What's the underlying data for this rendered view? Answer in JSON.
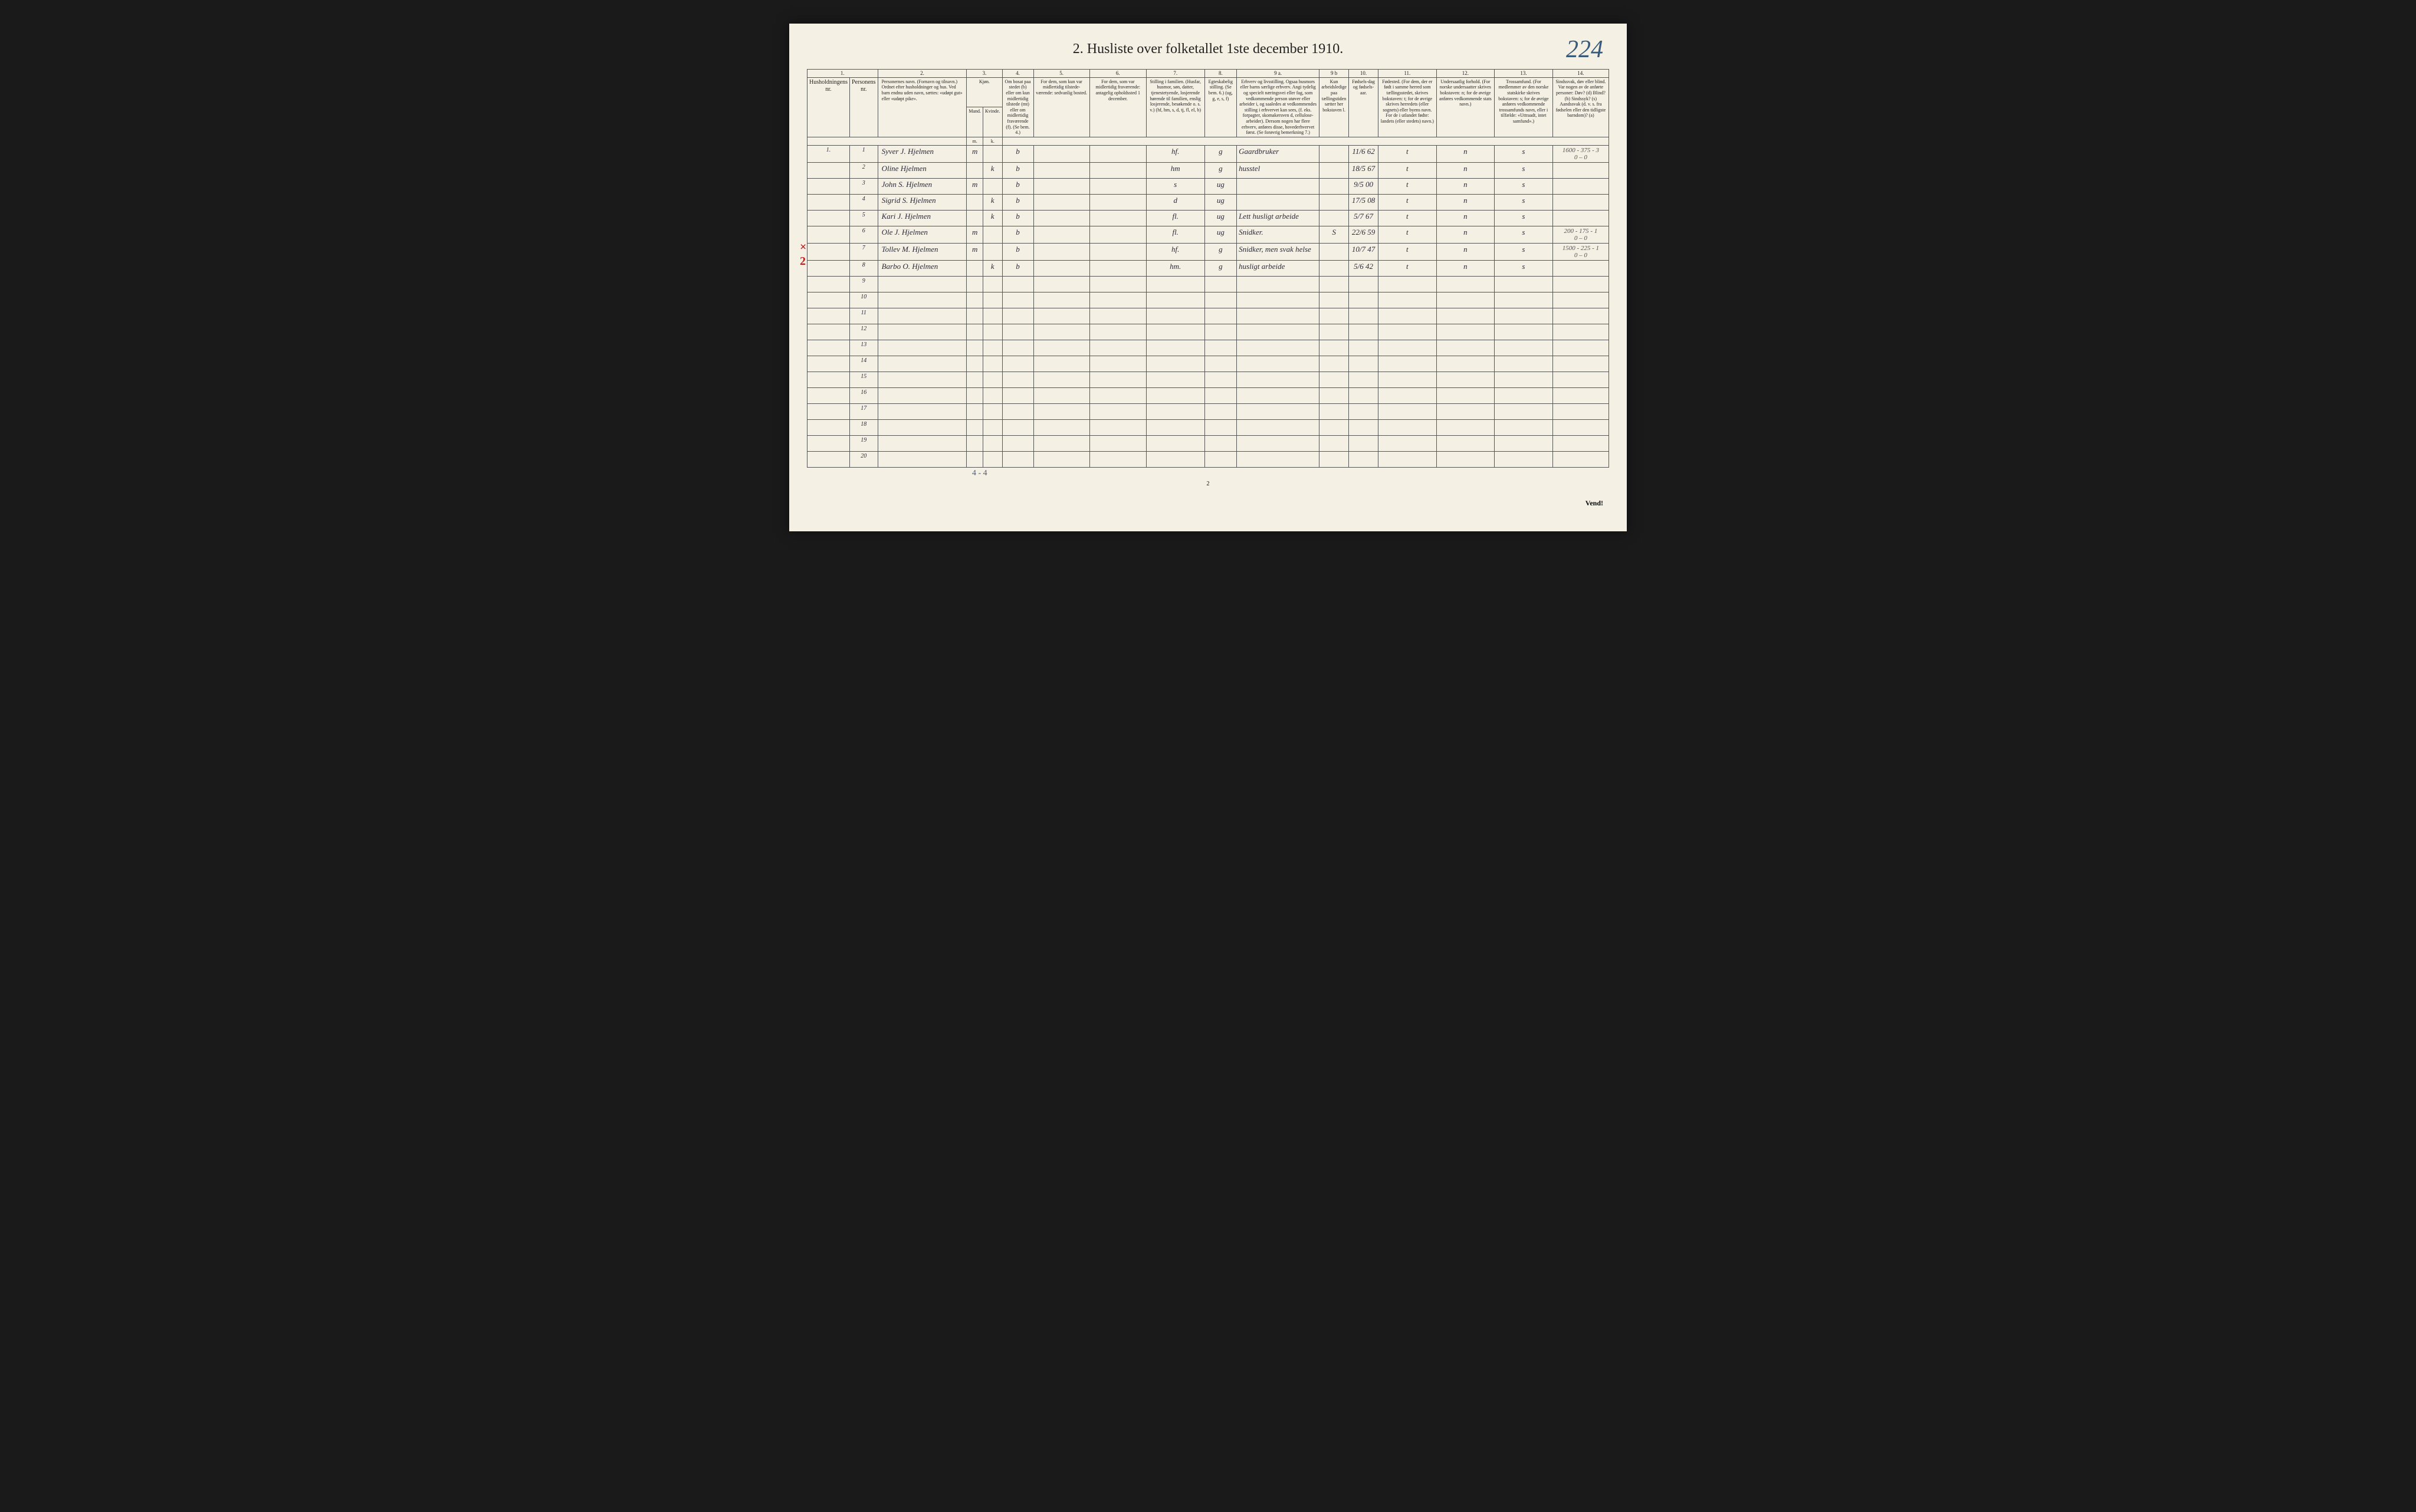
{
  "pageNumber": "224",
  "title": "2. Husliste over folketallet 1ste december 1910.",
  "colNumbers": [
    "1.",
    "",
    "2.",
    "3.",
    "4.",
    "5.",
    "6.",
    "7.",
    "8.",
    "9 a.",
    "9 b",
    "10.",
    "11.",
    "12.",
    "13.",
    "14."
  ],
  "headers": {
    "h1": "Husholdningens nr.",
    "h2": "Personens nr.",
    "h3": "Personernes navn.\n(Fornavn og tilnavn.)\nOrdnet efter husholdninger og hus.\nVed barn endnu uden navn, sættes: «udøpt gut» eller «udøpt pike».",
    "h4": "Kjøn.",
    "h4a": "Mand.",
    "h4b": "Kvinde.",
    "h5": "Om bosat paa stedet (b) eller om kun midlertidig tilstede (mt) eller om midlertidig fraværende (f).\n(Se bem. 4.)",
    "h6": "For dem, som kun var midlertidig tilstede-værende:\nsedvanlig bosted.",
    "h7": "For dem, som var midlertidig fraværende:\nantagelig opholdssted 1 december.",
    "h8": "Stilling i familien.\n(Husfar, husmor, søn, datter, tjenestetyende, losjerende hørende til familien, enslig losjerende, besøkende o. s. v.)\n(hf, hm, s, d, tj, fl, el, b)",
    "h9": "Egteskabelig stilling.\n(Se bem. 6.)\n(ug, g, e, s, f)",
    "h10": "Erhverv og livsstilling.\nOgsaa husmors eller barns særlige erhverv. Angi tydelig og specielt næringsvei eller fag, som vedkommende person utøver eller arbeider i, og saaledes at vedkommendes stilling i erhvervet kan sees, (f. eks. forpagter, skomakersven d, cellulose-arbeider). Dersom nogen har flere erhverv, anføres disse, hovederhvervet først.\n(Se forøvrig bemerkning 7.)",
    "h11": "Kun arbeidsledige paa tællingstiden sætter her bokstaven l.",
    "h12": "Fødsels-dag og fødsels-aar.",
    "h13": "Fødested.\n(For dem, der er født i samme herred som tællingsstedet, skrives bokstaven: t; for de øvrige skrives herredets (eller sognets) eller byens navn. For de i utlandet fødte: landets (eller stedets) navn.)",
    "h14": "Undersaatlig forhold.\n(For norske undersaatter skrives bokstaven: n; for de øvrige anføres vedkommende stats navn.)",
    "h15": "Trossamfund.\n(For medlemmer av den norske statskirke skrives bokstaven: s; for de øvrige anføres vedkommende trossamfunds navn, eller i tilfælde: «Uttraadt, intet samfund».)",
    "h16": "Sindssvak, døv eller blind.\nVar nogen av de anførte personer:\nDøv? (d)\nBlind? (b)\nSindssyk? (s)\nAandssvak (d. v. s. fra fødselen eller den tidligste barndom)? (a)"
  },
  "mk": {
    "m": "m.",
    "k": "k."
  },
  "rows": [
    {
      "hnr": "1.",
      "pnr": "1",
      "name": "Syver J. Hjelmen",
      "sex_m": "m",
      "sex_k": "",
      "bosat": "b",
      "c6": "",
      "c7": "",
      "fam": "hf.",
      "egt": "g",
      "erhverv": "Gaardbruker",
      "c9b": "",
      "fdate": "11/6 62",
      "fsted": "t",
      "und": "n",
      "tro": "s",
      "c14": "1600 - 375 - 3\n0 – 0"
    },
    {
      "hnr": "",
      "pnr": "2",
      "name": "Oline Hjelmen",
      "sex_m": "",
      "sex_k": "k",
      "bosat": "b",
      "c6": "",
      "c7": "",
      "fam": "hm",
      "egt": "g",
      "erhverv": "husstel",
      "c9b": "",
      "fdate": "18/5 67",
      "fsted": "t",
      "und": "n",
      "tro": "s",
      "c14": ""
    },
    {
      "hnr": "",
      "pnr": "3",
      "name": "John S. Hjelmen",
      "sex_m": "m",
      "sex_k": "",
      "bosat": "b",
      "c6": "",
      "c7": "",
      "fam": "s",
      "egt": "ug",
      "erhverv": "",
      "c9b": "",
      "fdate": "9/5 00",
      "fsted": "t",
      "und": "n",
      "tro": "s",
      "c14": ""
    },
    {
      "hnr": "",
      "pnr": "4",
      "name": "Sigrid S. Hjelmen",
      "sex_m": "",
      "sex_k": "k",
      "bosat": "b",
      "c6": "",
      "c7": "",
      "fam": "d",
      "egt": "ug",
      "erhverv": "",
      "c9b": "",
      "fdate": "17/5 08",
      "fsted": "t",
      "und": "n",
      "tro": "s",
      "c14": ""
    },
    {
      "hnr": "",
      "pnr": "5",
      "name": "Kari J. Hjelmen",
      "sex_m": "",
      "sex_k": "k",
      "bosat": "b",
      "c6": "",
      "c7": "",
      "fam": "fl.",
      "egt": "ug",
      "erhverv": "Lett husligt arbeide",
      "c9b": "",
      "fdate": "5/7 67",
      "fsted": "t",
      "und": "n",
      "tro": "s",
      "c14": ""
    },
    {
      "hnr": "",
      "pnr": "6",
      "name": "Ole J. Hjelmen",
      "sex_m": "m",
      "sex_k": "",
      "bosat": "b",
      "c6": "",
      "c7": "",
      "fam": "fl.",
      "egt": "ug",
      "erhverv": "Snidker.",
      "c9b": "S",
      "fdate": "22/6 59",
      "fsted": "t",
      "und": "n",
      "tro": "s",
      "c14": "200 - 175 - 1\n0 – 0"
    },
    {
      "hnr": "",
      "pnr": "7",
      "name": "Tollev M. Hjelmen",
      "sex_m": "m",
      "sex_k": "",
      "bosat": "b",
      "c6": "",
      "c7": "",
      "fam": "hf.",
      "egt": "g",
      "erhverv": "Snidker, men svak helse",
      "c9b": "",
      "fdate": "10/7 47",
      "fsted": "t",
      "und": "n",
      "tro": "s",
      "c14": "1500 - 225 - 1\n0 – 0"
    },
    {
      "hnr": "",
      "pnr": "8",
      "name": "Barbo O. Hjelmen",
      "sex_m": "",
      "sex_k": "k",
      "bosat": "b",
      "c6": "",
      "c7": "",
      "fam": "hm.",
      "egt": "g",
      "erhverv": "husligt arbeide",
      "c9b": "",
      "fdate": "5/6 42",
      "fsted": "t",
      "und": "n",
      "tro": "s",
      "c14": ""
    }
  ],
  "emptyRows": [
    "9",
    "10",
    "11",
    "12",
    "13",
    "14",
    "15",
    "16",
    "17",
    "18",
    "19",
    "20"
  ],
  "redMarks": {
    "r6": "×",
    "r7": "2"
  },
  "footCount": "4 - 4",
  "pageFootNum": "2",
  "vend": "Vend!"
}
